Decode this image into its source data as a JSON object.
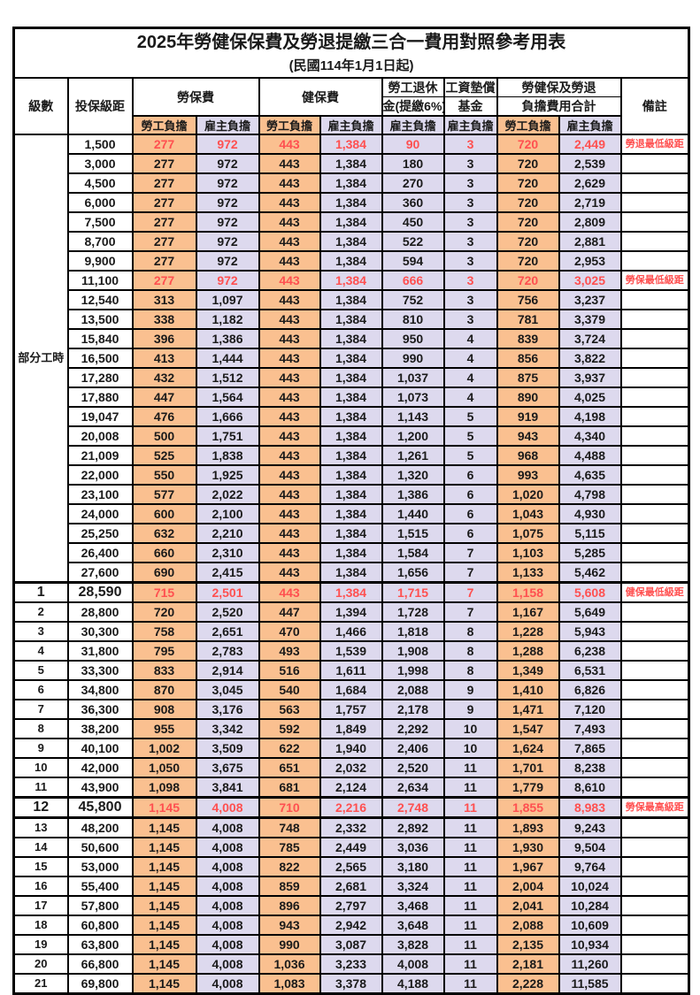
{
  "title": "2025年勞健保保費及勞退提繳三合一費用對照參考用表",
  "subtitle": "(民國114年1月1日起)",
  "colors": {
    "employee_fill": "#FAC090",
    "employer_fill": "#DDD9EE",
    "highlight_text": "#FF5050",
    "border": "#000000"
  },
  "header": {
    "level": "級數",
    "bracket": "投保級距",
    "labor_fee": "勞保費",
    "health_fee": "健保費",
    "pension_line1": "勞工退休",
    "pension_line2": "金(提繳6%)",
    "wage_fund_line1": "工資墊償",
    "wage_fund_line2": "基金",
    "total_line1": "勞健保及勞退",
    "total_line2": "負擔費用合計",
    "remark": "備註",
    "employee": "勞工負擔",
    "employer": "雇主負擔"
  },
  "part_time_label": "部分工時",
  "rows": [
    {
      "level": "",
      "bracket": "1,500",
      "values": [
        "277",
        "972",
        "443",
        "1,384",
        "90",
        "3",
        "720",
        "2,449"
      ],
      "remark": "勞退最低級距",
      "red": true,
      "bold": false
    },
    {
      "level": "",
      "bracket": "3,000",
      "values": [
        "277",
        "972",
        "443",
        "1,384",
        "180",
        "3",
        "720",
        "2,539"
      ],
      "remark": "",
      "red": false,
      "bold": false
    },
    {
      "level": "",
      "bracket": "4,500",
      "values": [
        "277",
        "972",
        "443",
        "1,384",
        "270",
        "3",
        "720",
        "2,629"
      ],
      "remark": "",
      "red": false,
      "bold": false
    },
    {
      "level": "",
      "bracket": "6,000",
      "values": [
        "277",
        "972",
        "443",
        "1,384",
        "360",
        "3",
        "720",
        "2,719"
      ],
      "remark": "",
      "red": false,
      "bold": false
    },
    {
      "level": "",
      "bracket": "7,500",
      "values": [
        "277",
        "972",
        "443",
        "1,384",
        "450",
        "3",
        "720",
        "2,809"
      ],
      "remark": "",
      "red": false,
      "bold": false
    },
    {
      "level": "",
      "bracket": "8,700",
      "values": [
        "277",
        "972",
        "443",
        "1,384",
        "522",
        "3",
        "720",
        "2,881"
      ],
      "remark": "",
      "red": false,
      "bold": false
    },
    {
      "level": "",
      "bracket": "9,900",
      "values": [
        "277",
        "972",
        "443",
        "1,384",
        "594",
        "3",
        "720",
        "2,953"
      ],
      "remark": "",
      "red": false,
      "bold": false
    },
    {
      "level": "",
      "bracket": "11,100",
      "values": [
        "277",
        "972",
        "443",
        "1,384",
        "666",
        "3",
        "720",
        "3,025"
      ],
      "remark": "勞保最低級距",
      "red": true,
      "bold": false
    },
    {
      "level": "",
      "bracket": "12,540",
      "values": [
        "313",
        "1,097",
        "443",
        "1,384",
        "752",
        "3",
        "756",
        "3,237"
      ],
      "remark": "",
      "red": false,
      "bold": false
    },
    {
      "level": "",
      "bracket": "13,500",
      "values": [
        "338",
        "1,182",
        "443",
        "1,384",
        "810",
        "3",
        "781",
        "3,379"
      ],
      "remark": "",
      "red": false,
      "bold": false
    },
    {
      "level": "",
      "bracket": "15,840",
      "values": [
        "396",
        "1,386",
        "443",
        "1,384",
        "950",
        "4",
        "839",
        "3,724"
      ],
      "remark": "",
      "red": false,
      "bold": false
    },
    {
      "level": "",
      "bracket": "16,500",
      "values": [
        "413",
        "1,444",
        "443",
        "1,384",
        "990",
        "4",
        "856",
        "3,822"
      ],
      "remark": "",
      "red": false,
      "bold": false
    },
    {
      "level": "",
      "bracket": "17,280",
      "values": [
        "432",
        "1,512",
        "443",
        "1,384",
        "1,037",
        "4",
        "875",
        "3,937"
      ],
      "remark": "",
      "red": false,
      "bold": false
    },
    {
      "level": "",
      "bracket": "17,880",
      "values": [
        "447",
        "1,564",
        "443",
        "1,384",
        "1,073",
        "4",
        "890",
        "4,025"
      ],
      "remark": "",
      "red": false,
      "bold": false
    },
    {
      "level": "",
      "bracket": "19,047",
      "values": [
        "476",
        "1,666",
        "443",
        "1,384",
        "1,143",
        "5",
        "919",
        "4,198"
      ],
      "remark": "",
      "red": false,
      "bold": false
    },
    {
      "level": "",
      "bracket": "20,008",
      "values": [
        "500",
        "1,751",
        "443",
        "1,384",
        "1,200",
        "5",
        "943",
        "4,340"
      ],
      "remark": "",
      "red": false,
      "bold": false
    },
    {
      "level": "",
      "bracket": "21,009",
      "values": [
        "525",
        "1,838",
        "443",
        "1,384",
        "1,261",
        "5",
        "968",
        "4,488"
      ],
      "remark": "",
      "red": false,
      "bold": false
    },
    {
      "level": "",
      "bracket": "22,000",
      "values": [
        "550",
        "1,925",
        "443",
        "1,384",
        "1,320",
        "6",
        "993",
        "4,635"
      ],
      "remark": "",
      "red": false,
      "bold": false
    },
    {
      "level": "",
      "bracket": "23,100",
      "values": [
        "577",
        "2,022",
        "443",
        "1,384",
        "1,386",
        "6",
        "1,020",
        "4,798"
      ],
      "remark": "",
      "red": false,
      "bold": false
    },
    {
      "level": "",
      "bracket": "24,000",
      "values": [
        "600",
        "2,100",
        "443",
        "1,384",
        "1,440",
        "6",
        "1,043",
        "4,930"
      ],
      "remark": "",
      "red": false,
      "bold": false
    },
    {
      "level": "",
      "bracket": "25,250",
      "values": [
        "632",
        "2,210",
        "443",
        "1,384",
        "1,515",
        "6",
        "1,075",
        "5,115"
      ],
      "remark": "",
      "red": false,
      "bold": false
    },
    {
      "level": "",
      "bracket": "26,400",
      "values": [
        "660",
        "2,310",
        "443",
        "1,384",
        "1,584",
        "7",
        "1,103",
        "5,285"
      ],
      "remark": "",
      "red": false,
      "bold": false
    },
    {
      "level": "",
      "bracket": "27,600",
      "values": [
        "690",
        "2,415",
        "443",
        "1,384",
        "1,656",
        "7",
        "1,133",
        "5,462"
      ],
      "remark": "",
      "red": false,
      "bold": false
    },
    {
      "level": "1",
      "bracket": "28,590",
      "values": [
        "715",
        "2,501",
        "443",
        "1,384",
        "1,715",
        "7",
        "1,158",
        "5,608"
      ],
      "remark": "健保最低級距",
      "red": true,
      "bold": true
    },
    {
      "level": "2",
      "bracket": "28,800",
      "values": [
        "720",
        "2,520",
        "447",
        "1,394",
        "1,728",
        "7",
        "1,167",
        "5,649"
      ],
      "remark": "",
      "red": false,
      "bold": false
    },
    {
      "level": "3",
      "bracket": "30,300",
      "values": [
        "758",
        "2,651",
        "470",
        "1,466",
        "1,818",
        "8",
        "1,228",
        "5,943"
      ],
      "remark": "",
      "red": false,
      "bold": false
    },
    {
      "level": "4",
      "bracket": "31,800",
      "values": [
        "795",
        "2,783",
        "493",
        "1,539",
        "1,908",
        "8",
        "1,288",
        "6,238"
      ],
      "remark": "",
      "red": false,
      "bold": false
    },
    {
      "level": "5",
      "bracket": "33,300",
      "values": [
        "833",
        "2,914",
        "516",
        "1,611",
        "1,998",
        "8",
        "1,349",
        "6,531"
      ],
      "remark": "",
      "red": false,
      "bold": false
    },
    {
      "level": "6",
      "bracket": "34,800",
      "values": [
        "870",
        "3,045",
        "540",
        "1,684",
        "2,088",
        "9",
        "1,410",
        "6,826"
      ],
      "remark": "",
      "red": false,
      "bold": false
    },
    {
      "level": "7",
      "bracket": "36,300",
      "values": [
        "908",
        "3,176",
        "563",
        "1,757",
        "2,178",
        "9",
        "1,471",
        "7,120"
      ],
      "remark": "",
      "red": false,
      "bold": false
    },
    {
      "level": "8",
      "bracket": "38,200",
      "values": [
        "955",
        "3,342",
        "592",
        "1,849",
        "2,292",
        "10",
        "1,547",
        "7,493"
      ],
      "remark": "",
      "red": false,
      "bold": false
    },
    {
      "level": "9",
      "bracket": "40,100",
      "values": [
        "1,002",
        "3,509",
        "622",
        "1,940",
        "2,406",
        "10",
        "1,624",
        "7,865"
      ],
      "remark": "",
      "red": false,
      "bold": false
    },
    {
      "level": "10",
      "bracket": "42,000",
      "values": [
        "1,050",
        "3,675",
        "651",
        "2,032",
        "2,520",
        "11",
        "1,701",
        "8,238"
      ],
      "remark": "",
      "red": false,
      "bold": false
    },
    {
      "level": "11",
      "bracket": "43,900",
      "values": [
        "1,098",
        "3,841",
        "681",
        "2,124",
        "2,634",
        "11",
        "1,779",
        "8,610"
      ],
      "remark": "",
      "red": false,
      "bold": false
    },
    {
      "level": "12",
      "bracket": "45,800",
      "values": [
        "1,145",
        "4,008",
        "710",
        "2,216",
        "2,748",
        "11",
        "1,855",
        "8,983"
      ],
      "remark": "勞保最高級距",
      "red": true,
      "bold": true
    },
    {
      "level": "13",
      "bracket": "48,200",
      "values": [
        "1,145",
        "4,008",
        "748",
        "2,332",
        "2,892",
        "11",
        "1,893",
        "9,243"
      ],
      "remark": "",
      "red": false,
      "bold": false
    },
    {
      "level": "14",
      "bracket": "50,600",
      "values": [
        "1,145",
        "4,008",
        "785",
        "2,449",
        "3,036",
        "11",
        "1,930",
        "9,504"
      ],
      "remark": "",
      "red": false,
      "bold": false
    },
    {
      "level": "15",
      "bracket": "53,000",
      "values": [
        "1,145",
        "4,008",
        "822",
        "2,565",
        "3,180",
        "11",
        "1,967",
        "9,764"
      ],
      "remark": "",
      "red": false,
      "bold": false
    },
    {
      "level": "16",
      "bracket": "55,400",
      "values": [
        "1,145",
        "4,008",
        "859",
        "2,681",
        "3,324",
        "11",
        "2,004",
        "10,024"
      ],
      "remark": "",
      "red": false,
      "bold": false
    },
    {
      "level": "17",
      "bracket": "57,800",
      "values": [
        "1,145",
        "4,008",
        "896",
        "2,797",
        "3,468",
        "11",
        "2,041",
        "10,284"
      ],
      "remark": "",
      "red": false,
      "bold": false
    },
    {
      "level": "18",
      "bracket": "60,800",
      "values": [
        "1,145",
        "4,008",
        "943",
        "2,942",
        "3,648",
        "11",
        "2,088",
        "10,609"
      ],
      "remark": "",
      "red": false,
      "bold": false
    },
    {
      "level": "19",
      "bracket": "63,800",
      "values": [
        "1,145",
        "4,008",
        "990",
        "3,087",
        "3,828",
        "11",
        "2,135",
        "10,934"
      ],
      "remark": "",
      "red": false,
      "bold": false
    },
    {
      "level": "20",
      "bracket": "66,800",
      "values": [
        "1,145",
        "4,008",
        "1,036",
        "3,233",
        "4,008",
        "11",
        "2,181",
        "11,260"
      ],
      "remark": "",
      "red": false,
      "bold": false
    },
    {
      "level": "21",
      "bracket": "69,800",
      "values": [
        "1,145",
        "4,008",
        "1,083",
        "3,378",
        "4,188",
        "11",
        "2,228",
        "11,585"
      ],
      "remark": "",
      "red": false,
      "bold": false
    }
  ]
}
